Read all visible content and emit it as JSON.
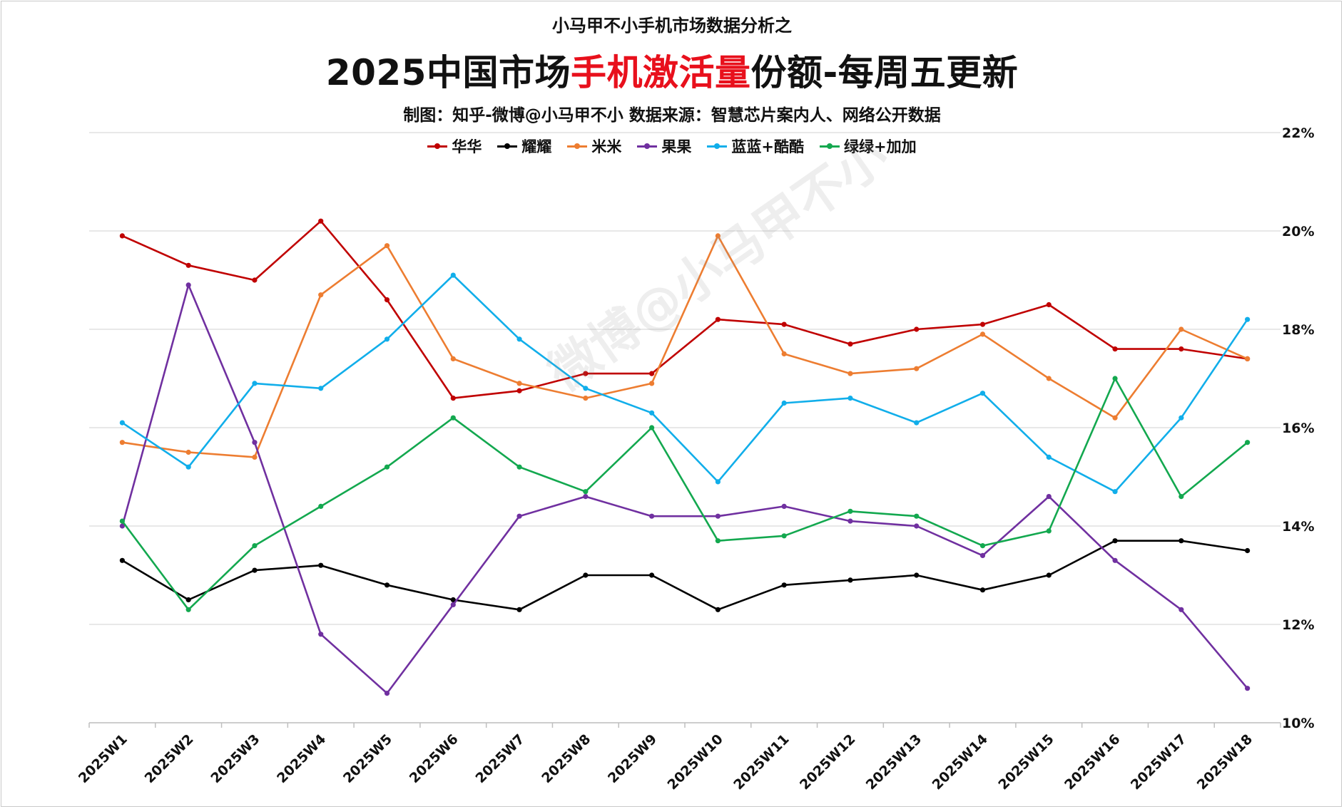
{
  "header": {
    "subtitle": "小马甲不小手机市场数据分析之",
    "title_prefix": "2025中国市场",
    "title_accent": "手机激活量",
    "title_suffix": "份额-每周五更新",
    "credit": "制图：知乎-微博@小马甲不小   数据来源：智慧芯片案内人、网络公开数据",
    "accent_color": "#e8101c"
  },
  "watermark": "微博@小马甲不小",
  "chart_data": {
    "type": "line",
    "categories": [
      "2025W1",
      "2025W2",
      "2025W3",
      "2025W4",
      "2025W5",
      "2025W6",
      "2025W7",
      "2025W8",
      "2025W9",
      "2025W10",
      "2025W11",
      "2025W12",
      "2025W13",
      "2025W14",
      "2025W15",
      "2025W16",
      "2025W17",
      "2025W18"
    ],
    "ylim": [
      10,
      22
    ],
    "yticks": [
      10,
      12,
      14,
      16,
      18,
      20,
      22
    ],
    "ytick_labels": [
      "10%",
      "12%",
      "14%",
      "16%",
      "18%",
      "20%",
      "22%"
    ],
    "y_axis_side": "right",
    "grid": true,
    "legend_position": "top-center",
    "series": [
      {
        "name": "华华",
        "color": "#c00000",
        "values": [
          19.9,
          19.3,
          19.0,
          20.2,
          18.6,
          16.6,
          16.75,
          17.1,
          17.1,
          18.2,
          18.1,
          17.7,
          18.0,
          18.1,
          18.5,
          17.6,
          17.6,
          17.4
        ]
      },
      {
        "name": "耀耀",
        "color": "#000000",
        "values": [
          13.3,
          12.5,
          13.1,
          13.2,
          12.8,
          12.5,
          12.3,
          13.0,
          13.0,
          12.3,
          12.8,
          12.9,
          13.0,
          12.7,
          13.0,
          13.7,
          13.7,
          13.5
        ]
      },
      {
        "name": "米米",
        "color": "#ed7d31",
        "values": [
          15.7,
          15.5,
          15.4,
          18.7,
          19.7,
          17.4,
          16.9,
          16.6,
          16.9,
          19.9,
          17.5,
          17.1,
          17.2,
          17.9,
          17.0,
          16.2,
          18.0,
          17.4
        ]
      },
      {
        "name": "果果",
        "color": "#7030a0",
        "values": [
          14.0,
          18.9,
          15.7,
          11.8,
          10.6,
          12.4,
          14.2,
          14.6,
          14.2,
          14.2,
          14.4,
          14.1,
          14.0,
          13.4,
          14.6,
          13.3,
          12.3,
          10.7
        ]
      },
      {
        "name": "蓝蓝+酷酷",
        "color": "#11aeea",
        "values": [
          16.1,
          15.2,
          16.9,
          16.8,
          17.8,
          19.1,
          17.8,
          16.8,
          16.3,
          14.9,
          16.5,
          16.6,
          16.1,
          16.7,
          15.4,
          14.7,
          16.2,
          18.2
        ]
      },
      {
        "name": "绿绿+加加",
        "color": "#13a84f",
        "values": [
          14.1,
          12.3,
          13.6,
          14.4,
          15.2,
          16.2,
          15.2,
          14.7,
          16.0,
          13.7,
          13.8,
          14.3,
          14.2,
          13.6,
          13.9,
          17.0,
          14.6,
          15.7
        ]
      }
    ]
  }
}
